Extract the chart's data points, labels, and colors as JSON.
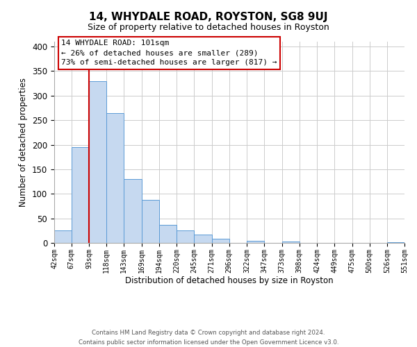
{
  "title": "14, WHYDALE ROAD, ROYSTON, SG8 9UJ",
  "subtitle": "Size of property relative to detached houses in Royston",
  "xlabel": "Distribution of detached houses by size in Royston",
  "ylabel": "Number of detached properties",
  "bar_color": "#c6d9f0",
  "bar_edge_color": "#5b9bd5",
  "vline_color": "#cc0000",
  "vline_x": 93,
  "bin_edges": [
    42,
    67,
    93,
    118,
    143,
    169,
    194,
    220,
    245,
    271,
    296,
    322,
    347,
    373,
    398,
    424,
    449,
    475,
    500,
    526,
    551
  ],
  "bar_heights": [
    25,
    195,
    330,
    265,
    130,
    88,
    37,
    26,
    17,
    8,
    0,
    4,
    0,
    3,
    0,
    0,
    0,
    0,
    0,
    2
  ],
  "tick_labels": [
    "42sqm",
    "67sqm",
    "93sqm",
    "118sqm",
    "143sqm",
    "169sqm",
    "194sqm",
    "220sqm",
    "245sqm",
    "271sqm",
    "296sqm",
    "322sqm",
    "347sqm",
    "373sqm",
    "398sqm",
    "424sqm",
    "449sqm",
    "475sqm",
    "500sqm",
    "526sqm",
    "551sqm"
  ],
  "ylim": [
    0,
    410
  ],
  "yticks": [
    0,
    50,
    100,
    150,
    200,
    250,
    300,
    350,
    400
  ],
  "annotation_title": "14 WHYDALE ROAD: 101sqm",
  "annotation_line1": "← 26% of detached houses are smaller (289)",
  "annotation_line2": "73% of semi-detached houses are larger (817) →",
  "footer_line1": "Contains HM Land Registry data © Crown copyright and database right 2024.",
  "footer_line2": "Contains public sector information licensed under the Open Government Licence v3.0.",
  "background_color": "#ffffff",
  "grid_color": "#cccccc"
}
